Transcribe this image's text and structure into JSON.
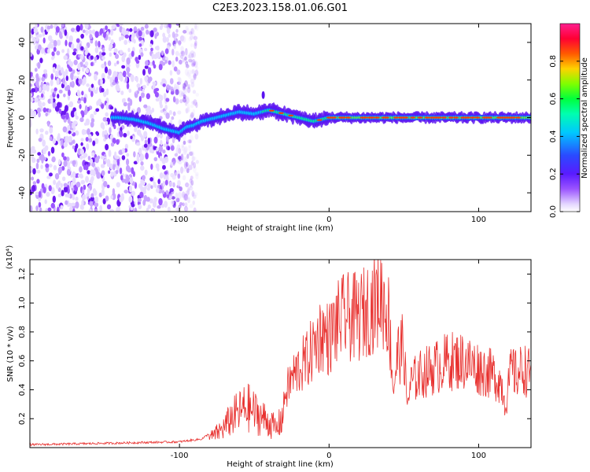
{
  "title": "C2E3.2023.158.01.06.G01",
  "chart_data": [
    {
      "type": "heatmap",
      "xlabel": "Height of straight line (km)",
      "ylabel": "Frequency (Hz)",
      "xlim": [
        -200,
        135
      ],
      "ylim": [
        -50,
        50
      ],
      "xticks": [
        -100,
        0,
        100
      ],
      "yticks": [
        40,
        20,
        0,
        -20,
        -40
      ],
      "colorbar": {
        "label": "Normalized spectral amplitude",
        "range": [
          0,
          1
        ],
        "ticks": [
          0.0,
          0.2,
          0.4,
          0.6,
          0.8
        ],
        "colors": [
          "#ffffff",
          "#d9c3ff",
          "#7f22ff",
          "#2f3bff",
          "#00d6ff",
          "#00ff7f",
          "#7fff00",
          "#ffcc00",
          "#ff3b00",
          "#ff0055",
          "#ff1f8f"
        ]
      },
      "ridge": {
        "points": [
          [
            -140,
            0
          ],
          [
            -130,
            -1
          ],
          [
            -120,
            -3
          ],
          [
            -110,
            -6
          ],
          [
            -100,
            -8
          ],
          [
            -95,
            -5
          ],
          [
            -90,
            -4
          ],
          [
            -85,
            -2
          ],
          [
            -80,
            -1
          ],
          [
            -70,
            1
          ],
          [
            -60,
            3
          ],
          [
            -50,
            2
          ],
          [
            -45,
            3
          ],
          [
            -40,
            4
          ],
          [
            -35,
            3
          ],
          [
            -30,
            2
          ],
          [
            -25,
            1
          ],
          [
            -20,
            0
          ],
          [
            -15,
            -1
          ],
          [
            -10,
            -2
          ],
          [
            0,
            0
          ],
          [
            20,
            0
          ],
          [
            60,
            0
          ],
          [
            100,
            0
          ],
          [
            135,
            0
          ]
        ],
        "noise_floor_until_km": -88
      }
    },
    {
      "type": "line",
      "xlabel": "Height of straight line (km)",
      "ylabel": "SNR (10 * v/v)",
      "yscale_label": "(x10⁴)",
      "xlim": [
        -200,
        135
      ],
      "ylim": [
        0,
        1.3
      ],
      "xticks": [
        -100,
        0,
        100
      ],
      "yticks": [
        0.2,
        0.4,
        0.6,
        0.8,
        1.0,
        1.2
      ],
      "series": [
        {
          "color": "#e8312f",
          "envelope": [
            [
              -200,
              0.02
            ],
            [
              -150,
              0.03
            ],
            [
              -100,
              0.04
            ],
            [
              -85,
              0.06
            ],
            [
              -77,
              0.12
            ],
            [
              -70,
              0.2
            ],
            [
              -65,
              0.3
            ],
            [
              -60,
              0.35
            ],
            [
              -55,
              0.4
            ],
            [
              -50,
              0.35
            ],
            [
              -45,
              0.3
            ],
            [
              -40,
              0.25
            ],
            [
              -35,
              0.18
            ],
            [
              -30,
              0.35
            ],
            [
              -25,
              0.48
            ],
            [
              -20,
              0.55
            ],
            [
              -15,
              0.6
            ],
            [
              -10,
              0.7
            ],
            [
              -5,
              0.8
            ],
            [
              0,
              0.75
            ],
            [
              5,
              0.85
            ],
            [
              10,
              0.9
            ],
            [
              15,
              0.9
            ],
            [
              20,
              0.9
            ],
            [
              25,
              0.95
            ],
            [
              30,
              1.0
            ],
            [
              35,
              1.05
            ],
            [
              40,
              0.9
            ],
            [
              43,
              0.4
            ],
            [
              46,
              0.65
            ],
            [
              50,
              0.7
            ],
            [
              52,
              0.3
            ],
            [
              55,
              0.45
            ],
            [
              60,
              0.5
            ],
            [
              70,
              0.55
            ],
            [
              80,
              0.6
            ],
            [
              90,
              0.6
            ],
            [
              100,
              0.55
            ],
            [
              110,
              0.5
            ],
            [
              115,
              0.45
            ],
            [
              118,
              0.3
            ],
            [
              122,
              0.55
            ],
            [
              125,
              0.5
            ],
            [
              130,
              0.55
            ],
            [
              135,
              0.5
            ]
          ]
        }
      ]
    }
  ]
}
